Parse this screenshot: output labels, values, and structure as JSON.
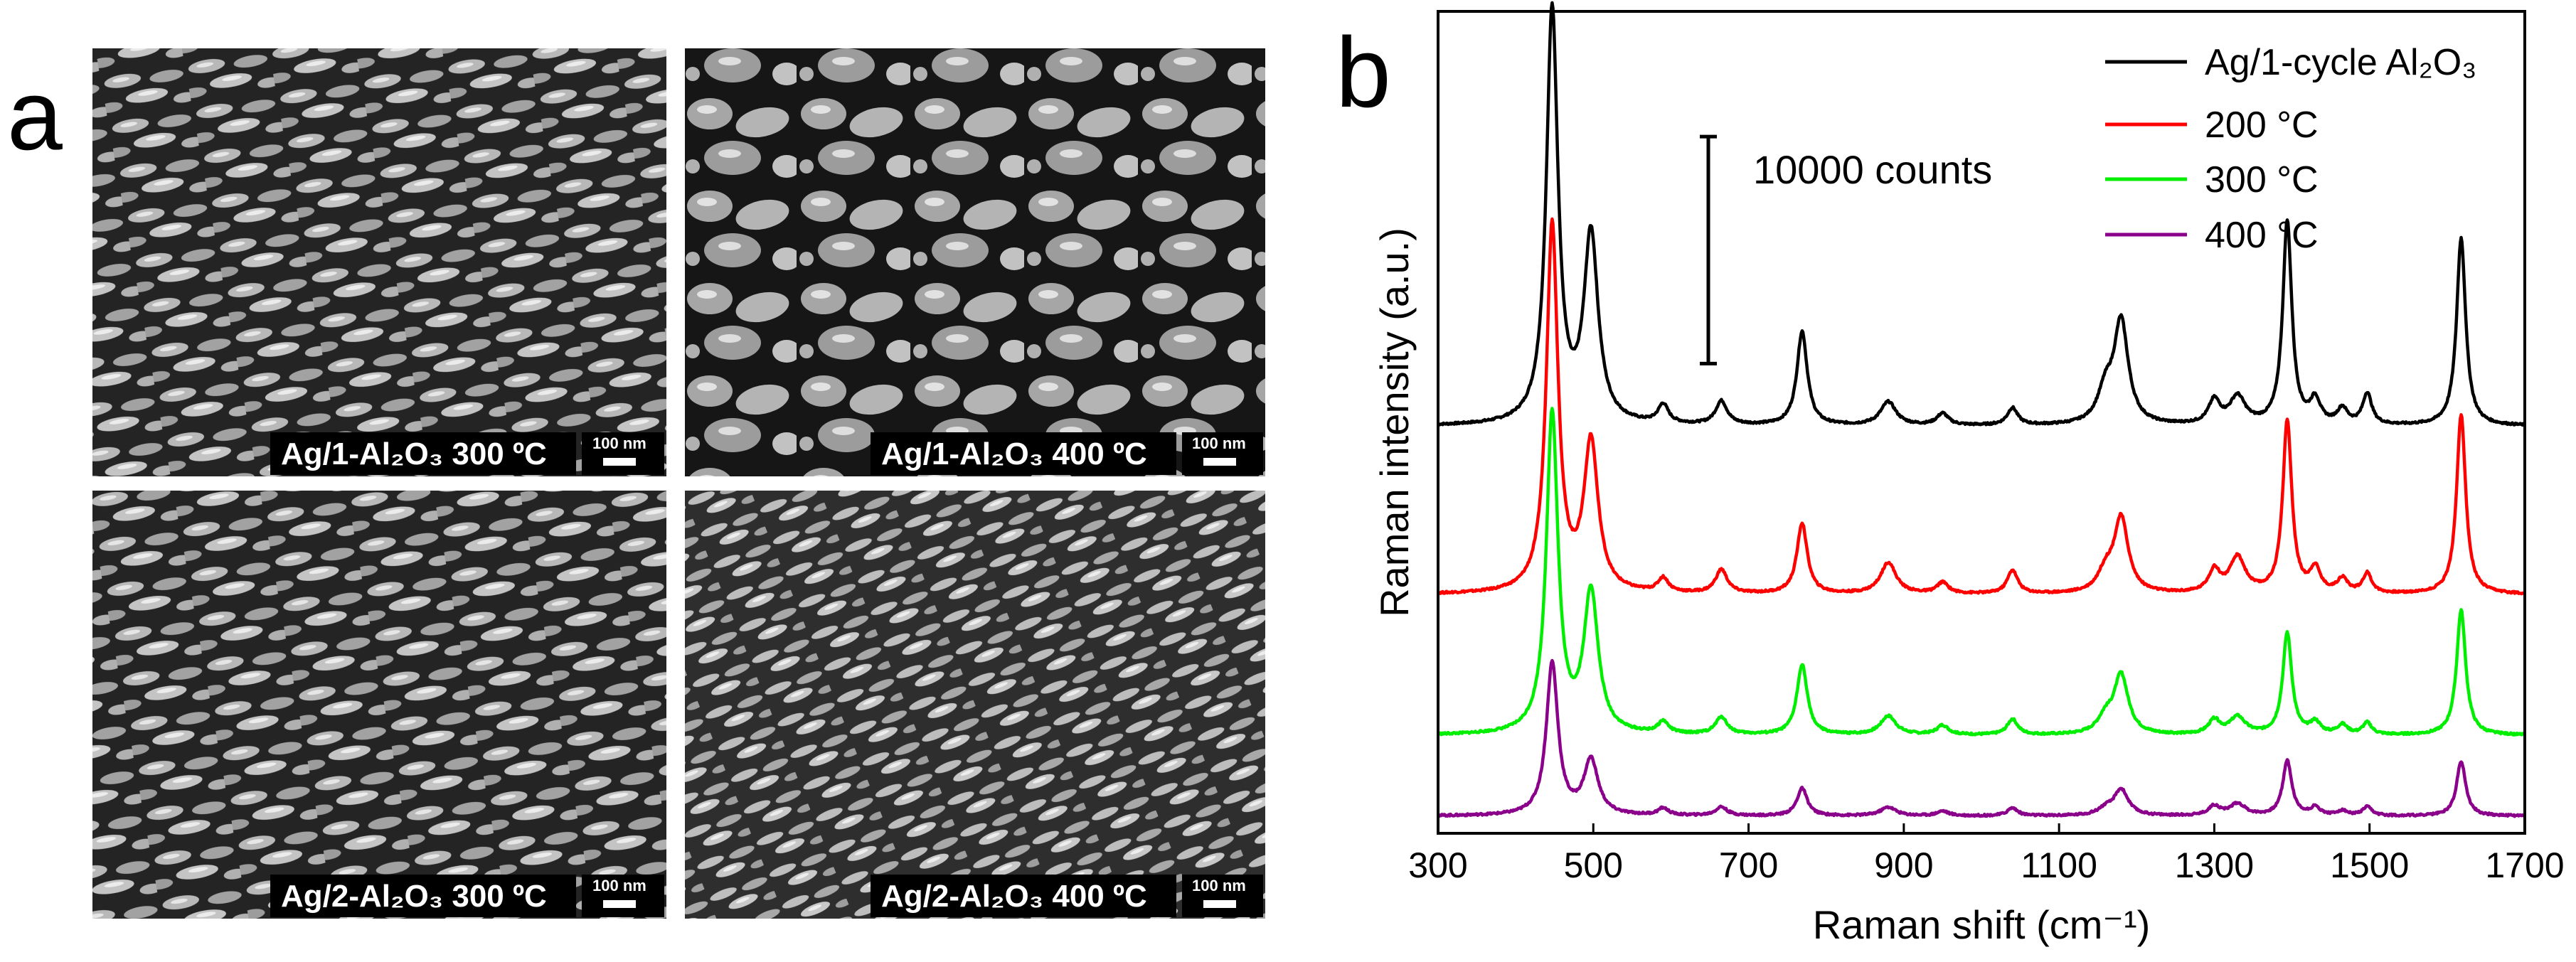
{
  "panel_a": {
    "letter": "a",
    "images": [
      {
        "caption": "Ag/1-Al₂O₃ 300 ºC",
        "scale_bar": "100 nm",
        "pattern": "elongated-dense"
      },
      {
        "caption": "Ag/1-Al₂O₃ 400 ºC",
        "scale_bar": "100 nm",
        "pattern": "coalesced-islands"
      },
      {
        "caption": "Ag/2-Al₂O₃ 300 ºC",
        "scale_bar": "100 nm",
        "pattern": "elongated-dense"
      },
      {
        "caption": "Ag/2-Al₂O₃ 400 ºC",
        "scale_bar": "100 nm",
        "pattern": "elongated-tilted"
      }
    ]
  },
  "panel_b": {
    "letter": "b"
  },
  "chart_data": {
    "type": "line",
    "xlabel": "Raman shift (cm⁻¹)",
    "ylabel": "Raman intensity (a.u.)",
    "xlim": [
      300,
      1700
    ],
    "ylim": [
      0,
      105000
    ],
    "xticks": [
      300,
      500,
      700,
      900,
      1100,
      1300,
      1500,
      1700
    ],
    "yticks_shown": false,
    "scale_bar": {
      "label": "10000 counts",
      "value": 10000
    },
    "legend_position": "top-right",
    "peaks": [
      {
        "x": 447,
        "w": 9
      },
      {
        "x": 497,
        "w": 11
      },
      {
        "x": 590,
        "w": 8
      },
      {
        "x": 665,
        "w": 9
      },
      {
        "x": 769,
        "w": 8
      },
      {
        "x": 880,
        "w": 12
      },
      {
        "x": 950,
        "w": 9
      },
      {
        "x": 1040,
        "w": 8
      },
      {
        "x": 1160,
        "w": 12
      },
      {
        "x": 1180,
        "w": 11
      },
      {
        "x": 1300,
        "w": 9
      },
      {
        "x": 1330,
        "w": 12
      },
      {
        "x": 1394,
        "w": 7
      },
      {
        "x": 1430,
        "w": 8
      },
      {
        "x": 1465,
        "w": 8
      },
      {
        "x": 1497,
        "w": 7
      },
      {
        "x": 1618,
        "w": 7
      }
    ],
    "series": [
      {
        "name": "Ag/1-cycle Al₂O₃",
        "color": "#000000",
        "baseline": 52000,
        "amplitudes": [
          53000,
          24000,
          2400,
          3000,
          12000,
          3000,
          1500,
          2200,
          4000,
          13000,
          3000,
          3500,
          26000,
          3000,
          2000,
          4000,
          24000
        ]
      },
      {
        "name": "200 °C",
        "color": "#ff0000",
        "baseline": 30500,
        "amplitudes": [
          47000,
          19000,
          1800,
          3000,
          9000,
          4000,
          1400,
          3000,
          2500,
          9500,
          2800,
          4500,
          22000,
          3000,
          1800,
          2500,
          23000
        ]
      },
      {
        "name": "300 °C",
        "color": "#00ee00",
        "baseline": 12500,
        "amplitudes": [
          41000,
          18000,
          1500,
          2200,
          9000,
          2400,
          1200,
          2000,
          2000,
          7500,
          1800,
          2200,
          13000,
          1500,
          1200,
          1500,
          16000
        ]
      },
      {
        "name": "400 °C",
        "color": "#8b008b",
        "baseline": 2200,
        "amplitudes": [
          19500,
          7000,
          900,
          1100,
          3500,
          1100,
          600,
          1000,
          800,
          3300,
          1200,
          1500,
          7000,
          1000,
          600,
          1100,
          7000
        ]
      }
    ]
  }
}
